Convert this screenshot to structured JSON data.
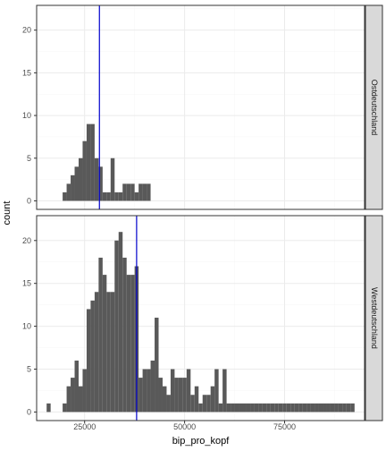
{
  "chart_data": {
    "type": "bar",
    "subtype": "faceted-histogram",
    "xlabel": "bip_pro_kopf",
    "ylabel": "count",
    "x_ticks": [
      25000,
      50000,
      75000
    ],
    "x_tick_labels": [
      "25000",
      "50000",
      "75000"
    ],
    "xlim": [
      13000,
      95000
    ],
    "ylim": [
      -1,
      22.9
    ],
    "y_ticks": [
      0,
      5,
      10,
      15,
      20
    ],
    "y_tick_labels": [
      "0",
      "5",
      "10",
      "15",
      "20"
    ],
    "bin_width": 1000,
    "grid": true,
    "colors": {
      "bar": "#595959",
      "vline": "#0000cc",
      "strip": "#d9d9d9",
      "panel_border": "#333333",
      "grid_major": "#ebebeb",
      "grid_minor": "#f5f5f5"
    },
    "facets": [
      {
        "label": "Ostdeutschland",
        "vline": 28700,
        "bins": [
          {
            "x": 20000,
            "count": 1
          },
          {
            "x": 21000,
            "count": 2
          },
          {
            "x": 22000,
            "count": 3
          },
          {
            "x": 23000,
            "count": 4
          },
          {
            "x": 24000,
            "count": 5
          },
          {
            "x": 25000,
            "count": 7
          },
          {
            "x": 26000,
            "count": 9
          },
          {
            "x": 27000,
            "count": 9
          },
          {
            "x": 28000,
            "count": 5
          },
          {
            "x": 29000,
            "count": 4
          },
          {
            "x": 30000,
            "count": 1
          },
          {
            "x": 31000,
            "count": 1
          },
          {
            "x": 32000,
            "count": 5
          },
          {
            "x": 33000,
            "count": 1
          },
          {
            "x": 34000,
            "count": 1
          },
          {
            "x": 35000,
            "count": 2
          },
          {
            "x": 36000,
            "count": 2
          },
          {
            "x": 37000,
            "count": 2
          },
          {
            "x": 38000,
            "count": 1
          },
          {
            "x": 39000,
            "count": 2
          },
          {
            "x": 40000,
            "count": 2
          },
          {
            "x": 41000,
            "count": 2
          }
        ]
      },
      {
        "label": "Westdeutschland",
        "vline": 38000,
        "bins": [
          {
            "x": 16000,
            "count": 1
          },
          {
            "x": 20000,
            "count": 1
          },
          {
            "x": 21000,
            "count": 3
          },
          {
            "x": 22000,
            "count": 4
          },
          {
            "x": 23000,
            "count": 6
          },
          {
            "x": 24000,
            "count": 3
          },
          {
            "x": 25000,
            "count": 5
          },
          {
            "x": 26000,
            "count": 12
          },
          {
            "x": 27000,
            "count": 13
          },
          {
            "x": 28000,
            "count": 14
          },
          {
            "x": 29000,
            "count": 18
          },
          {
            "x": 30000,
            "count": 16
          },
          {
            "x": 31000,
            "count": 14
          },
          {
            "x": 32000,
            "count": 14
          },
          {
            "x": 33000,
            "count": 20
          },
          {
            "x": 34000,
            "count": 21
          },
          {
            "x": 35000,
            "count": 18
          },
          {
            "x": 36000,
            "count": 16
          },
          {
            "x": 37000,
            "count": 16
          },
          {
            "x": 38000,
            "count": 17
          },
          {
            "x": 39000,
            "count": 4
          },
          {
            "x": 40000,
            "count": 5
          },
          {
            "x": 41000,
            "count": 5
          },
          {
            "x": 42000,
            "count": 6
          },
          {
            "x": 43000,
            "count": 11
          },
          {
            "x": 44000,
            "count": 4
          },
          {
            "x": 45000,
            "count": 3
          },
          {
            "x": 46000,
            "count": 2
          },
          {
            "x": 47000,
            "count": 5
          },
          {
            "x": 48000,
            "count": 4
          },
          {
            "x": 49000,
            "count": 4
          },
          {
            "x": 50000,
            "count": 4
          },
          {
            "x": 51000,
            "count": 5
          },
          {
            "x": 52000,
            "count": 2
          },
          {
            "x": 53000,
            "count": 3
          },
          {
            "x": 54000,
            "count": 1
          },
          {
            "x": 55000,
            "count": 2
          },
          {
            "x": 56000,
            "count": 2
          },
          {
            "x": 57000,
            "count": 3
          },
          {
            "x": 58000,
            "count": 5
          },
          {
            "x": 59000,
            "count": 1
          },
          {
            "x": 60000,
            "count": 5
          },
          {
            "x": 61000,
            "count": 1
          },
          {
            "x": 62000,
            "count": 1
          },
          {
            "x": 63000,
            "count": 1
          },
          {
            "x": 64000,
            "count": 1
          },
          {
            "x": 65000,
            "count": 1
          },
          {
            "x": 66000,
            "count": 1
          },
          {
            "x": 67000,
            "count": 1
          },
          {
            "x": 68000,
            "count": 1
          },
          {
            "x": 69000,
            "count": 1
          },
          {
            "x": 70000,
            "count": 1
          },
          {
            "x": 71000,
            "count": 1
          },
          {
            "x": 72000,
            "count": 1
          },
          {
            "x": 73000,
            "count": 1
          },
          {
            "x": 74000,
            "count": 1
          },
          {
            "x": 75000,
            "count": 1
          },
          {
            "x": 76000,
            "count": 1
          },
          {
            "x": 77000,
            "count": 1
          },
          {
            "x": 78000,
            "count": 1
          },
          {
            "x": 79000,
            "count": 1
          },
          {
            "x": 80000,
            "count": 1
          },
          {
            "x": 81000,
            "count": 1
          },
          {
            "x": 82000,
            "count": 1
          },
          {
            "x": 83000,
            "count": 1
          },
          {
            "x": 84000,
            "count": 1
          },
          {
            "x": 85000,
            "count": 1
          },
          {
            "x": 86000,
            "count": 1
          },
          {
            "x": 87000,
            "count": 1
          },
          {
            "x": 88000,
            "count": 1
          },
          {
            "x": 89000,
            "count": 1
          },
          {
            "x": 90000,
            "count": 1
          },
          {
            "x": 91000,
            "count": 1
          },
          {
            "x": 92000,
            "count": 1
          }
        ]
      }
    ]
  }
}
